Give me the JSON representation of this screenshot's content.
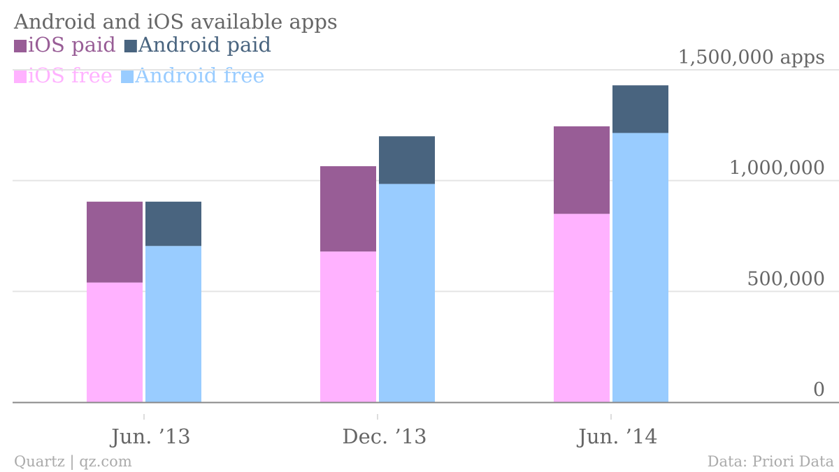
{
  "chart_data": {
    "type": "bar",
    "title": "Android and iOS available apps",
    "categories": [
      "Jun. ’13",
      "Dec. ’13",
      "Jun. ’14"
    ],
    "series": [
      {
        "name": "iOS free",
        "group": "iOS",
        "values": [
          540000,
          680000,
          850000
        ],
        "color": "#FFB2FF"
      },
      {
        "name": "iOS paid",
        "group": "iOS",
        "values": [
          365000,
          385000,
          395000
        ],
        "color": "#985D96"
      },
      {
        "name": "Android free",
        "group": "Android",
        "values": [
          705000,
          985000,
          1215000
        ],
        "color": "#99CCFF"
      },
      {
        "name": "Android paid",
        "group": "Android",
        "values": [
          200000,
          215000,
          215000
        ],
        "color": "#49647F"
      }
    ],
    "legend": {
      "position": "top-left",
      "rows": [
        [
          "iOS paid",
          "Android paid"
        ],
        [
          "iOS free",
          "Android free"
        ]
      ]
    },
    "y_axis": {
      "position": "right",
      "ylim": [
        0,
        1500000
      ],
      "ticks": [
        0,
        500000,
        1000000,
        1500000
      ],
      "tick_labels": [
        "0",
        "500,000",
        "1,000,000",
        "1,500,000 apps"
      ]
    },
    "grid": true
  },
  "footer": {
    "source_left": "Quartz | qz.com",
    "source_right": "Data: Priori Data"
  },
  "colors": {
    "text": "#666666",
    "grid": "#e4e4e4",
    "axis": "#888888"
  }
}
